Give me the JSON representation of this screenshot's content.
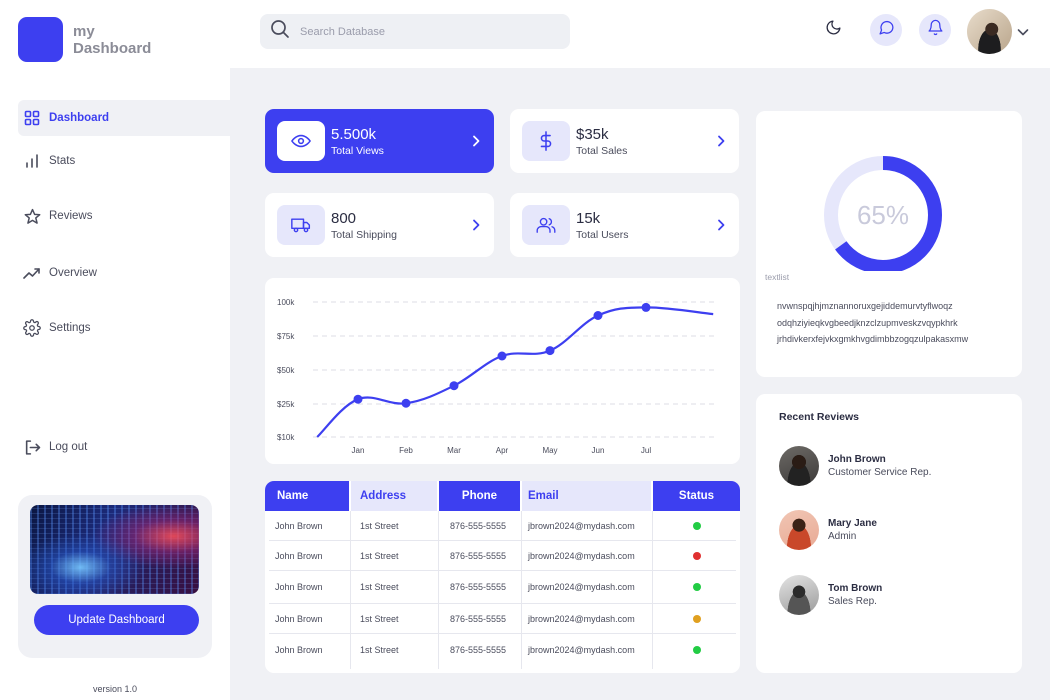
{
  "brand": {
    "line1": "my",
    "line2": "Dashboard",
    "color": "#3d3ff0"
  },
  "sidebar": {
    "items": [
      {
        "label": "Dashboard",
        "icon": "grid-icon",
        "active": true
      },
      {
        "label": "Stats",
        "icon": "bar-chart-icon"
      },
      {
        "label": "Reviews",
        "icon": "star-icon"
      },
      {
        "label": "Overview",
        "icon": "trend-up-icon"
      },
      {
        "label": "Settings",
        "icon": "gear-icon"
      }
    ],
    "logout": "Log out",
    "promo_button": "Update Dashboard",
    "version": "version 1.0"
  },
  "header": {
    "search_placeholder": "Search Database",
    "icons": [
      "moon-icon",
      "chat-icon",
      "bell-icon",
      "chevron-down-icon"
    ]
  },
  "stats": [
    {
      "value": "5.500k",
      "label": "Total Views",
      "icon": "eye-icon"
    },
    {
      "value": "$35k",
      "label": "Total Sales",
      "icon": "dollar-icon"
    },
    {
      "value": "800",
      "label": "Total Shipping",
      "icon": "truck-icon"
    },
    {
      "value": "15k",
      "label": "Total Users",
      "icon": "users-icon"
    }
  ],
  "chart_data": {
    "type": "line",
    "categories": [
      "Jan",
      "Feb",
      "Mar",
      "Apr",
      "May",
      "Jun",
      "Jul"
    ],
    "yticks": [
      "100k",
      "$75k",
      "$50k",
      "$25k",
      "$10k"
    ],
    "points": [
      {
        "x": 1,
        "y": 38,
        "marker": true
      },
      {
        "x": 2,
        "y": 35,
        "marker": true
      },
      {
        "x": 3,
        "y": 48,
        "marker": true
      },
      {
        "x": 4,
        "y": 70,
        "marker": true
      },
      {
        "x": 5,
        "y": 74,
        "marker": true
      },
      {
        "x": 6,
        "y": 100,
        "marker": true
      },
      {
        "x": 7,
        "y": 106,
        "marker": true
      }
    ],
    "start": {
      "x": 0.15,
      "y": 10
    },
    "end": {
      "x": 8.4,
      "y": 101
    },
    "grid": true,
    "color": "#3d3ff0"
  },
  "table": {
    "headers": [
      "Name",
      "Address",
      "Phone",
      "Email",
      "Status"
    ],
    "rows": [
      {
        "name": "John Brown",
        "address": "1st Street",
        "phone": "876-555-5555",
        "email": "jbrown2024@mydash.com",
        "status_color": "#22cc44"
      },
      {
        "name": "John Brown",
        "address": "1st Street",
        "phone": "876-555-5555",
        "email": "jbrown2024@mydash.com",
        "status_color": "#e03030"
      },
      {
        "name": "John Brown",
        "address": "1st Street",
        "phone": "876-555-5555",
        "email": "jbrown2024@mydash.com",
        "status_color": "#22cc44"
      },
      {
        "name": "John Brown",
        "address": "1st Street",
        "phone": "876-555-5555",
        "email": "jbrown2024@mydash.com",
        "status_color": "#e0a020"
      },
      {
        "name": "John Brown",
        "address": "1st Street",
        "phone": "876-555-5555",
        "email": "jbrown2024@mydash.com",
        "status_color": "#22cc44"
      }
    ]
  },
  "donut": {
    "value_text": "65%",
    "fraction": 0.65,
    "color": "#3d3ff0",
    "track_color": "#e6e7fb",
    "caption": "textlist",
    "lines": [
      "nvwnspqjhjmznannoruxgejiddemurvtyflwoqz",
      "odqhziyieqkvgbeedjknzclzupmveskzvqypkhrk",
      "jrhdivkerxfejvkxgmkhvgdimbbzogqzulpakasxmw"
    ]
  },
  "reviews": {
    "title": "Recent Reviews",
    "items": [
      {
        "name": "John Brown",
        "role": "Customer Service Rep."
      },
      {
        "name": "Mary Jane",
        "role": "Admin"
      },
      {
        "name": "Tom Brown",
        "role": "Sales Rep."
      }
    ]
  }
}
